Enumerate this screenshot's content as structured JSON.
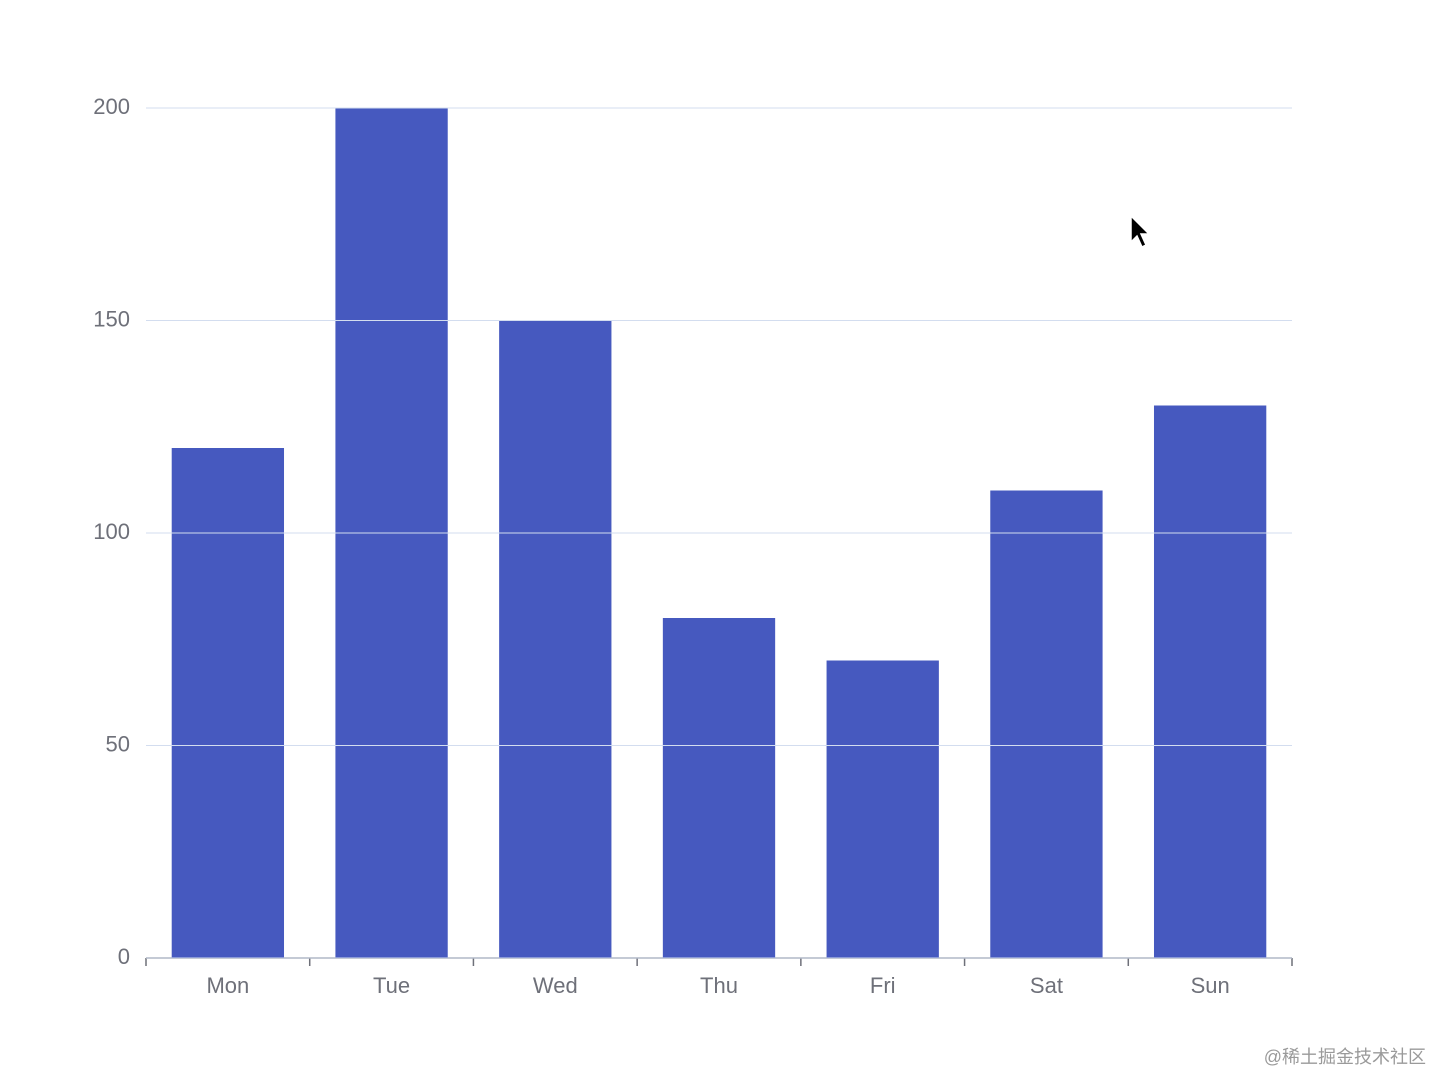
{
  "chart_data": {
    "type": "bar",
    "categories": [
      "Mon",
      "Tue",
      "Wed",
      "Thu",
      "Fri",
      "Sat",
      "Sun"
    ],
    "values": [
      120,
      200,
      150,
      80,
      70,
      110,
      130
    ],
    "color": "#4659bf",
    "ylim": [
      0,
      200
    ],
    "yticks": [
      0,
      50,
      100,
      150,
      200
    ],
    "grid": true
  },
  "watermark": "@稀土掘金技术社区"
}
